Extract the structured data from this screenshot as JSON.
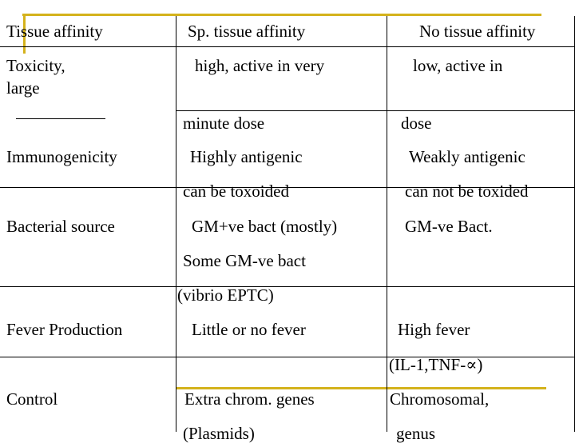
{
  "colors": {
    "accent": "#d4b21c",
    "text": "#000000",
    "rule": "#000000"
  },
  "header": {
    "col1": "Tissue affinity",
    "col2": "Sp. tissue affinity",
    "col3": "No tissue affinity"
  },
  "rows": {
    "toxicity": {
      "label_line1": "Toxicity,",
      "label_line2": "large",
      "sp_line1": "high, active in very",
      "sp_line2": "minute dose",
      "no_line1": "low, active in",
      "no_line2": "dose"
    },
    "immunogenicity": {
      "label": "Immunogenicity",
      "sp_line1": "Highly antigenic",
      "sp_line2": "can be toxoided",
      "no_line1": "Weakly antigenic",
      "no_line2": "can not be toxided"
    },
    "bacterial_source": {
      "label": "Bacterial source",
      "sp_line1": "GM+ve  bact (mostly)",
      "sp_line2": "Some GM-ve bact",
      "sp_line3": "(vibrio EPTC)",
      "no_line1": "GM-ve Bact."
    },
    "fever": {
      "label": "Fever Production",
      "sp_line1": "Little or no fever",
      "no_line1": "High fever",
      "no_line2": "(IL-1,TNF-∝)"
    },
    "control": {
      "label": "Control",
      "sp_line1": "Extra chrom. genes",
      "sp_line2": "(Plasmids)",
      "no_line1": "Chromosomal,",
      "no_line2": "genus"
    }
  }
}
